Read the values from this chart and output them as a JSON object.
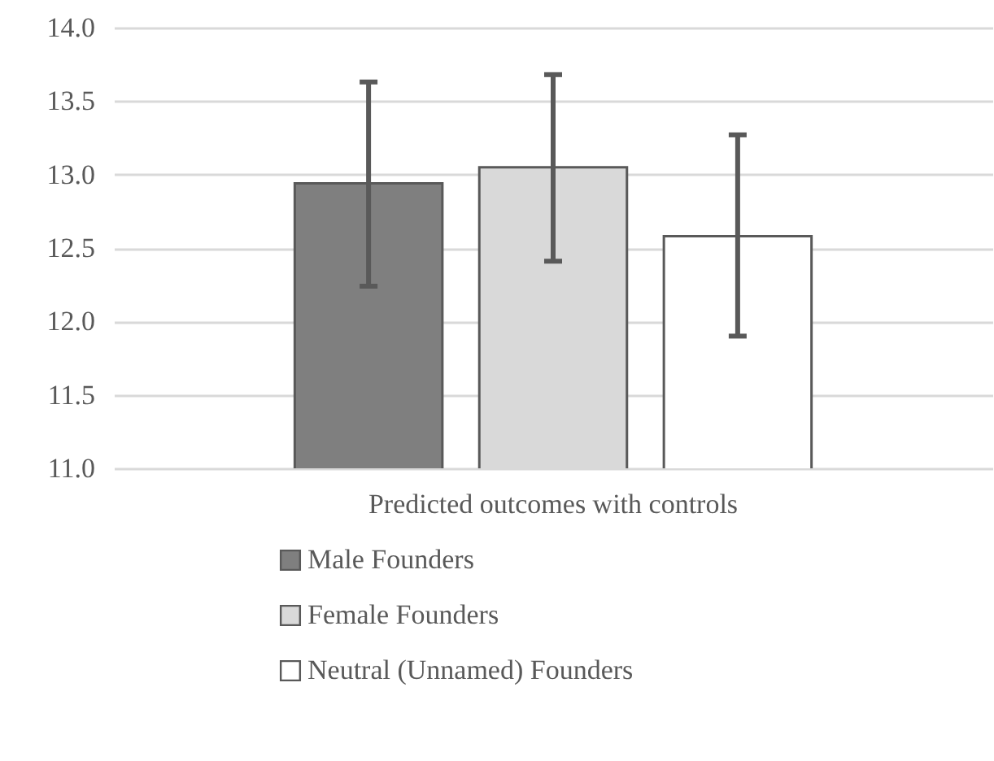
{
  "chart_data": {
    "type": "bar",
    "categories": [
      "Predicted outcomes with controls"
    ],
    "series": [
      {
        "name": "Male Founders",
        "color": "#7f7f7f",
        "values": [
          12.94
        ],
        "errors": [
          [
            12.24,
            13.63
          ]
        ]
      },
      {
        "name": "Female Founders",
        "color": "#d9d9d9",
        "values": [
          13.05
        ],
        "errors": [
          [
            12.41,
            13.68
          ]
        ]
      },
      {
        "name": "Neutral (Unnamed) Founders",
        "color": "#ffffff",
        "values": [
          12.58
        ],
        "errors": [
          [
            11.9,
            13.27
          ]
        ]
      }
    ],
    "ylim": [
      11.0,
      14.0
    ],
    "yticks": [
      {
        "value": 11,
        "label": "11.0"
      },
      {
        "value": 11.5,
        "label": "11.5"
      },
      {
        "value": 12,
        "label": "12.0"
      },
      {
        "value": 12.5,
        "label": "12.5"
      },
      {
        "value": 13,
        "label": "13.0"
      },
      {
        "value": 13.5,
        "label": "13.5"
      },
      {
        "value": 14,
        "label": "14.0"
      }
    ],
    "grid": "y",
    "legend": "bottom"
  }
}
